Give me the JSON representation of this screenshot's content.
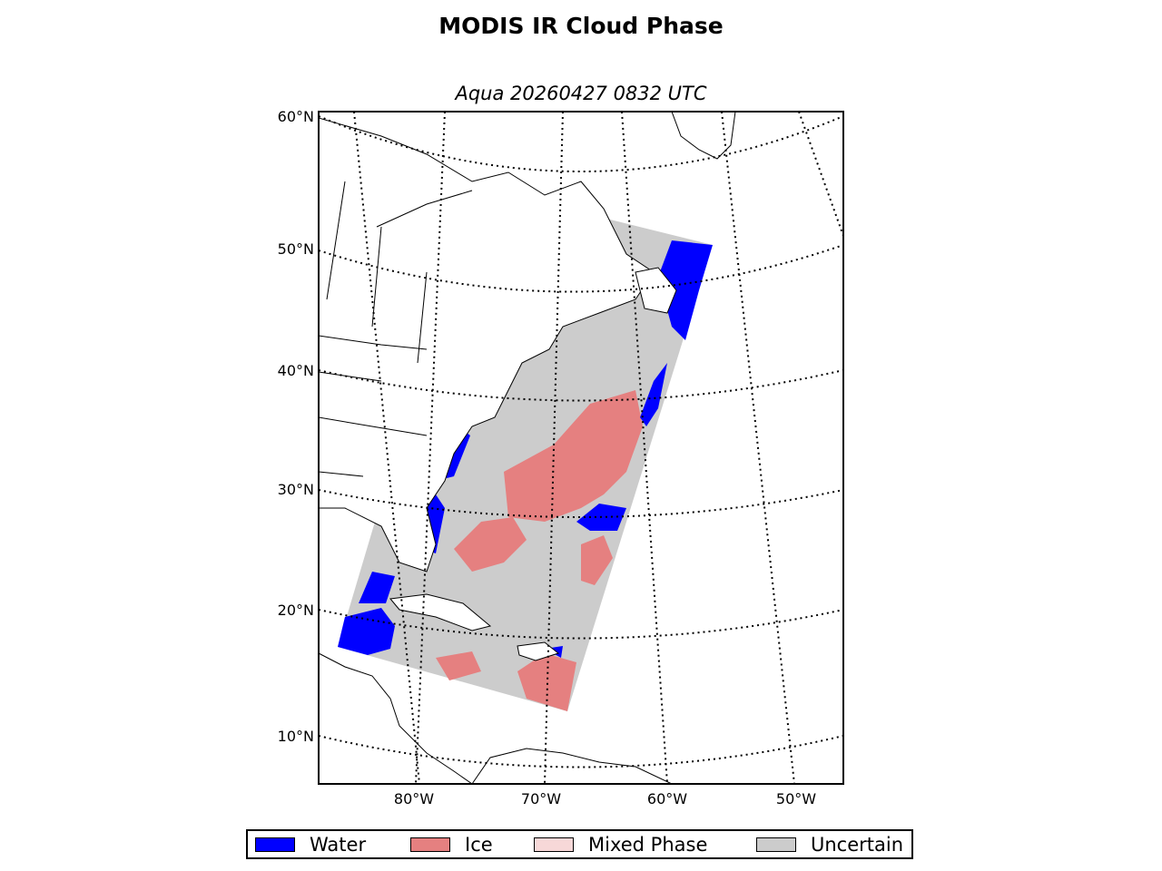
{
  "title": "MODIS IR Cloud Phase",
  "subtitle": "Aqua 20260427 0832 UTC",
  "lat_labels": [
    "60°N",
    "50°N",
    "40°N",
    "30°N",
    "20°N",
    "10°N"
  ],
  "lon_labels": [
    "80°W",
    "70°W",
    "60°W",
    "50°W"
  ],
  "legend": [
    {
      "label": "Water",
      "color": "#0000ff"
    },
    {
      "label": "Ice",
      "color": "#e58080"
    },
    {
      "label": "Mixed Phase",
      "color": "#f7d8d8"
    },
    {
      "label": "Uncertain",
      "color": "#cccccc"
    }
  ],
  "colors": {
    "water": "#0000ff",
    "ice": "#e58080",
    "mixed": "#f7d8d8",
    "uncertain": "#cccccc",
    "land": "#ffffff",
    "coast": "#000000"
  }
}
